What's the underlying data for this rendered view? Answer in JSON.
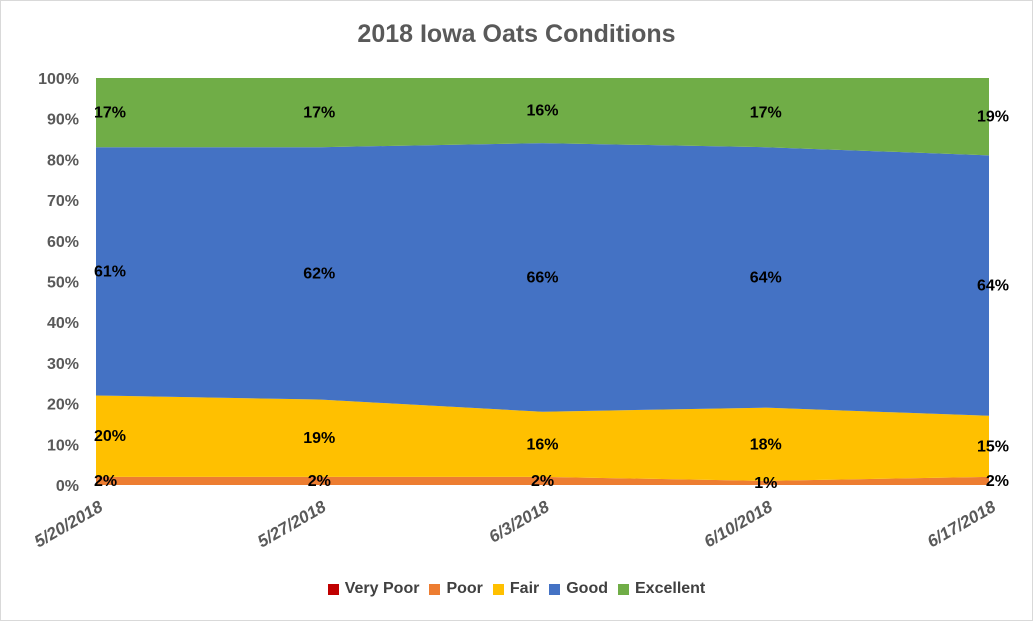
{
  "chart_data": {
    "type": "area",
    "stacked": "percent",
    "title": "2018 Iowa Oats Conditions",
    "categories": [
      "5/20/2018",
      "5/27/2018",
      "6/3/2018",
      "6/10/2018",
      "6/17/2018"
    ],
    "ylim": [
      0,
      100
    ],
    "y_ticks": [
      "0%",
      "10%",
      "20%",
      "30%",
      "40%",
      "50%",
      "60%",
      "70%",
      "80%",
      "90%",
      "100%"
    ],
    "grid": false,
    "legend_position": "bottom",
    "series": [
      {
        "name": "Very Poor",
        "color": "#c00000",
        "values": [
          0,
          0,
          0,
          0,
          0
        ],
        "labels": [
          "",
          "",
          "",
          "",
          ""
        ]
      },
      {
        "name": "Poor",
        "color": "#ed7d31",
        "values": [
          2,
          2,
          2,
          1,
          2
        ],
        "labels": [
          "2%",
          "2%",
          "2%",
          "1%",
          "2%"
        ]
      },
      {
        "name": "Fair",
        "color": "#ffc000",
        "values": [
          20,
          19,
          16,
          18,
          15
        ],
        "labels": [
          "20%",
          "19%",
          "16%",
          "18%",
          "15%"
        ]
      },
      {
        "name": "Good",
        "color": "#4472c4",
        "values": [
          61,
          62,
          66,
          64,
          64
        ],
        "labels": [
          "61%",
          "62%",
          "66%",
          "64%",
          "64%"
        ]
      },
      {
        "name": "Excellent",
        "color": "#70ad47",
        "values": [
          17,
          17,
          16,
          17,
          19
        ],
        "labels": [
          "17%",
          "17%",
          "16%",
          "17%",
          "19%"
        ]
      }
    ]
  }
}
